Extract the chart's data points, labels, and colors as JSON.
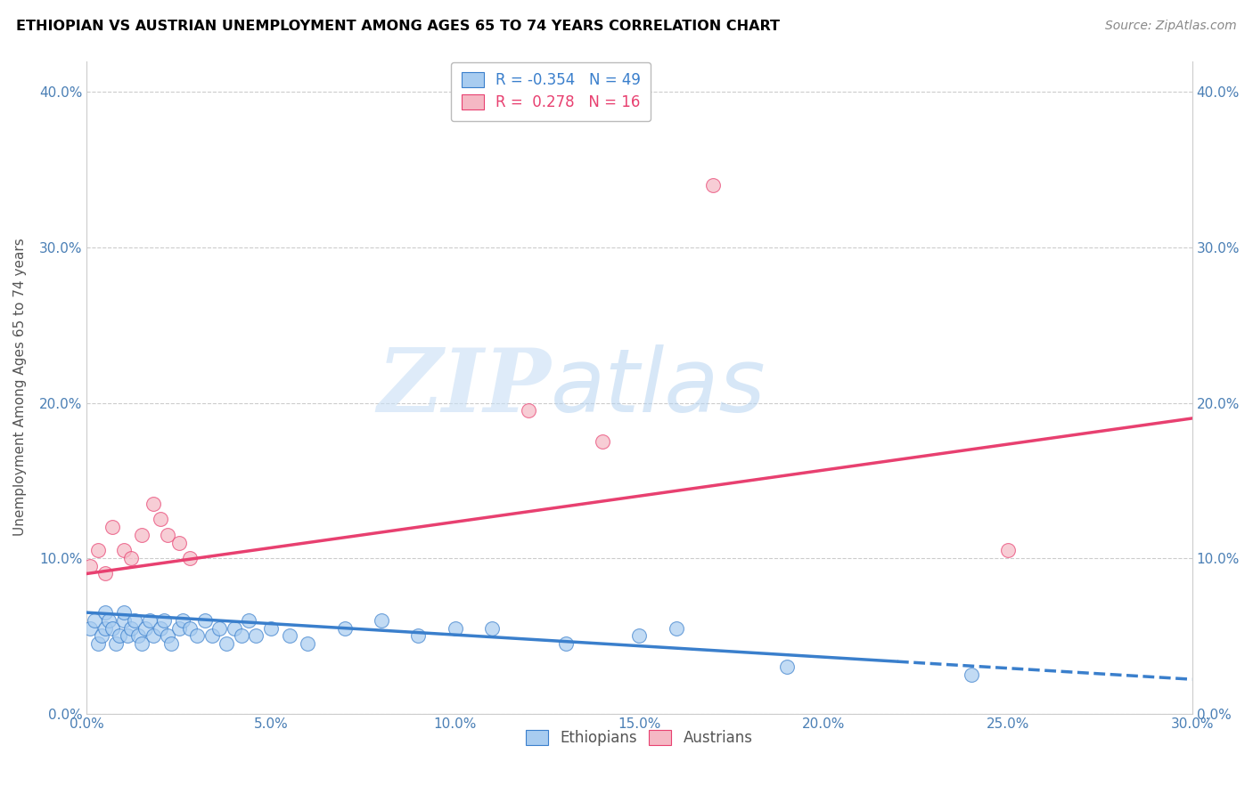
{
  "title": "ETHIOPIAN VS AUSTRIAN UNEMPLOYMENT AMONG AGES 65 TO 74 YEARS CORRELATION CHART",
  "source": "Source: ZipAtlas.com",
  "xlabel": "",
  "ylabel": "Unemployment Among Ages 65 to 74 years",
  "xlim": [
    0.0,
    0.3
  ],
  "ylim": [
    0.0,
    0.42
  ],
  "xticks": [
    0.0,
    0.05,
    0.1,
    0.15,
    0.2,
    0.25,
    0.3
  ],
  "yticks": [
    0.0,
    0.1,
    0.2,
    0.3,
    0.4
  ],
  "blue_color": "#A8CCF0",
  "pink_color": "#F5B8C4",
  "blue_line_color": "#3A7FCC",
  "pink_line_color": "#E84070",
  "legend_R_blue": "-0.354",
  "legend_N_blue": "49",
  "legend_R_pink": "0.278",
  "legend_N_pink": "16",
  "watermark_zip": "ZIP",
  "watermark_atlas": "atlas",
  "blue_points_x": [
    0.001,
    0.002,
    0.003,
    0.004,
    0.005,
    0.005,
    0.006,
    0.007,
    0.008,
    0.009,
    0.01,
    0.01,
    0.011,
    0.012,
    0.013,
    0.014,
    0.015,
    0.016,
    0.017,
    0.018,
    0.02,
    0.021,
    0.022,
    0.023,
    0.025,
    0.026,
    0.028,
    0.03,
    0.032,
    0.034,
    0.036,
    0.038,
    0.04,
    0.042,
    0.044,
    0.046,
    0.05,
    0.055,
    0.06,
    0.07,
    0.08,
    0.09,
    0.1,
    0.11,
    0.13,
    0.15,
    0.16,
    0.19,
    0.24
  ],
  "blue_points_y": [
    0.055,
    0.06,
    0.045,
    0.05,
    0.055,
    0.065,
    0.06,
    0.055,
    0.045,
    0.05,
    0.06,
    0.065,
    0.05,
    0.055,
    0.06,
    0.05,
    0.045,
    0.055,
    0.06,
    0.05,
    0.055,
    0.06,
    0.05,
    0.045,
    0.055,
    0.06,
    0.055,
    0.05,
    0.06,
    0.05,
    0.055,
    0.045,
    0.055,
    0.05,
    0.06,
    0.05,
    0.055,
    0.05,
    0.045,
    0.055,
    0.06,
    0.05,
    0.055,
    0.055,
    0.045,
    0.05,
    0.055,
    0.03,
    0.025
  ],
  "pink_points_x": [
    0.001,
    0.003,
    0.005,
    0.007,
    0.01,
    0.012,
    0.015,
    0.018,
    0.02,
    0.022,
    0.025,
    0.028,
    0.12,
    0.14,
    0.25,
    0.17
  ],
  "pink_points_y": [
    0.095,
    0.105,
    0.09,
    0.12,
    0.105,
    0.1,
    0.115,
    0.135,
    0.125,
    0.115,
    0.11,
    0.1,
    0.195,
    0.175,
    0.105,
    0.34
  ],
  "blue_line_start_x": 0.0,
  "blue_line_end_x": 0.3,
  "blue_line_solid_end": 0.22,
  "pink_line_start_x": 0.0,
  "pink_line_end_x": 0.3,
  "background_color": "#FFFFFF",
  "grid_color": "#CCCCCC"
}
